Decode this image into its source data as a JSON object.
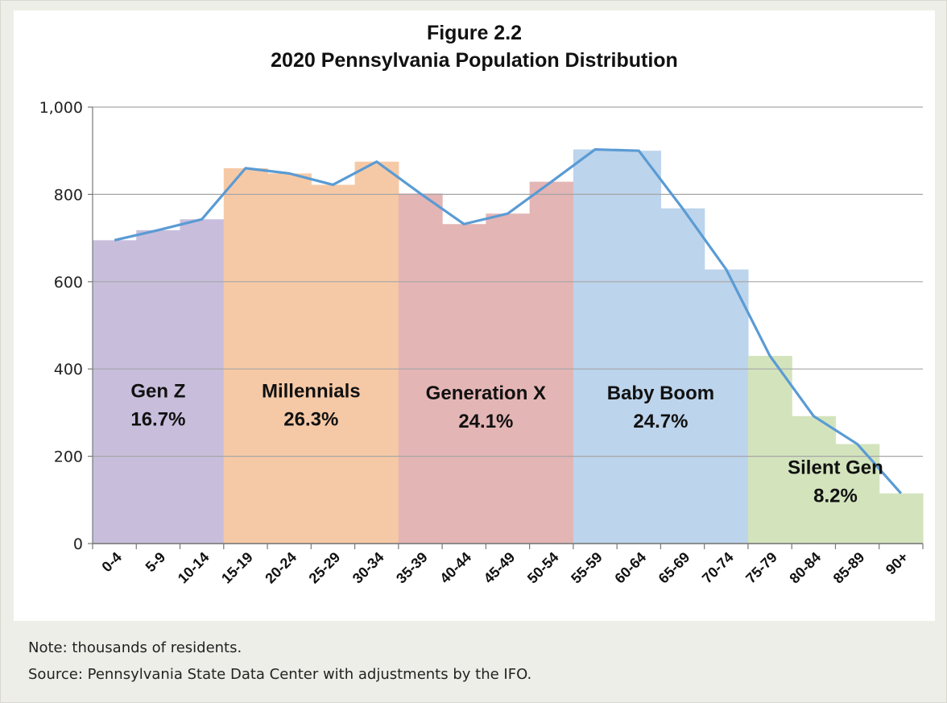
{
  "figure_number": "Figure 2.2",
  "notes": {
    "units": "Note: thousands of residents.",
    "source": "Source: Pennsylvania State Data Center with adjustments by the IFO."
  },
  "colors": {
    "gen_z": "#c8bedc",
    "millennials": "#f6c9a6",
    "generation_x": "#e4b5b5",
    "baby_boom": "#bcd4ec",
    "silent_gen": "#d3e4bd",
    "line": "#5a9bd4",
    "grid": "#a6a6a6"
  },
  "chart_data": {
    "type": "bar",
    "title": "2020 Pennsylvania Population Distribution",
    "xlabel": "",
    "ylabel": "",
    "ylim": [
      0,
      1000
    ],
    "yticks": [
      "0",
      "200",
      "400",
      "600",
      "800",
      "1,000"
    ],
    "grid": true,
    "categories": [
      "0-4",
      "5-9",
      "10-14",
      "15-19",
      "20-24",
      "25-29",
      "30-34",
      "35-39",
      "40-44",
      "45-49",
      "50-54",
      "55-59",
      "60-64",
      "65-69",
      "70-74",
      "75-79",
      "80-84",
      "85-89",
      "90+"
    ],
    "values": [
      695,
      718,
      743,
      860,
      848,
      822,
      875,
      802,
      732,
      756,
      829,
      903,
      900,
      768,
      628,
      430,
      292,
      228,
      115
    ],
    "line_values": [
      695,
      718,
      743,
      860,
      848,
      822,
      875,
      802,
      732,
      756,
      829,
      903,
      900,
      768,
      628,
      430,
      292,
      228,
      115
    ],
    "groups": [
      {
        "name": "Gen Z",
        "share": "16.7%",
        "color_key": "gen_z",
        "start": 0,
        "end": 2,
        "label_y": 335
      },
      {
        "name": "Millennials",
        "share": "26.3%",
        "color_key": "millennials",
        "start": 3,
        "end": 6,
        "label_y": 335
      },
      {
        "name": "Generation X",
        "share": "24.1%",
        "color_key": "generation_x",
        "start": 7,
        "end": 10,
        "label_y": 330
      },
      {
        "name": "Baby Boom",
        "share": "24.7%",
        "color_key": "baby_boom",
        "start": 11,
        "end": 14,
        "label_y": 330
      },
      {
        "name": "Silent Gen",
        "share": "8.2%",
        "color_key": "silent_gen",
        "start": 15,
        "end": 18,
        "label_y": 160
      }
    ]
  }
}
